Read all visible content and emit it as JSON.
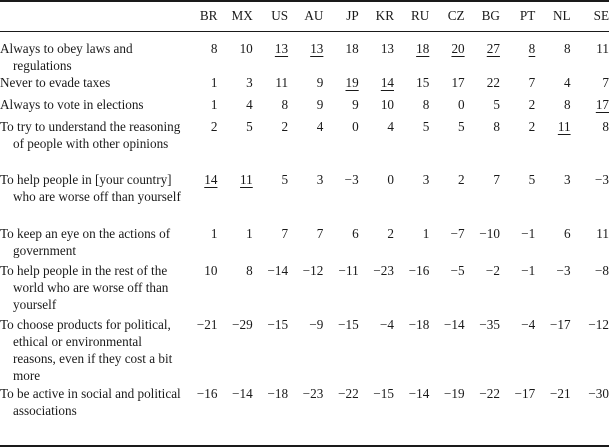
{
  "table": {
    "columns": [
      "BR",
      "MX",
      "US",
      "AU",
      "JP",
      "KR",
      "RU",
      "CZ",
      "BG",
      "PT",
      "NL",
      "SE"
    ],
    "rows": [
      {
        "label": "Always to obey laws and regulations",
        "values": [
          "8",
          "10",
          "13",
          "13",
          "18",
          "13",
          "18",
          "20",
          "27",
          "8",
          "8",
          "11"
        ],
        "underlined": [
          false,
          false,
          true,
          true,
          false,
          false,
          true,
          true,
          true,
          true,
          false,
          false
        ]
      },
      {
        "label": "Never to evade taxes",
        "values": [
          "1",
          "3",
          "11",
          "9",
          "19",
          "14",
          "15",
          "17",
          "22",
          "7",
          "4",
          "7"
        ],
        "underlined": [
          false,
          false,
          false,
          false,
          true,
          true,
          false,
          false,
          false,
          false,
          false,
          false
        ]
      },
      {
        "label": "Always to vote in elections",
        "values": [
          "1",
          "4",
          "8",
          "9",
          "9",
          "10",
          "8",
          "0",
          "5",
          "2",
          "8",
          "17"
        ],
        "underlined": [
          false,
          false,
          false,
          false,
          false,
          false,
          false,
          false,
          false,
          false,
          false,
          true
        ]
      },
      {
        "label": "To try to understand the reasoning of people with other opinions",
        "values": [
          "2",
          "5",
          "2",
          "4",
          "0",
          "4",
          "5",
          "5",
          "8",
          "2",
          "11",
          "8"
        ],
        "underlined": [
          false,
          false,
          false,
          false,
          false,
          false,
          false,
          false,
          false,
          false,
          true,
          false
        ]
      },
      {
        "label": "To help people in [your country] who are worse off than yourself",
        "values": [
          "14",
          "11",
          "5",
          "3",
          "−3",
          "0",
          "3",
          "2",
          "7",
          "5",
          "3",
          "−3"
        ],
        "underlined": [
          true,
          true,
          false,
          false,
          false,
          false,
          false,
          false,
          false,
          false,
          false,
          false
        ]
      },
      {
        "label": "To keep an eye on the actions of government",
        "values": [
          "1",
          "1",
          "7",
          "7",
          "6",
          "2",
          "1",
          "−7",
          "−10",
          "−1",
          "6",
          "11"
        ],
        "underlined": [
          false,
          false,
          false,
          false,
          false,
          false,
          false,
          false,
          false,
          false,
          false,
          false
        ]
      },
      {
        "label": "To help people in the rest of the world who are worse off than yourself",
        "values": [
          "10",
          "8",
          "−14",
          "−12",
          "−11",
          "−23",
          "−16",
          "−5",
          "−2",
          "−1",
          "−3",
          "−8"
        ],
        "underlined": [
          false,
          false,
          false,
          false,
          false,
          false,
          false,
          false,
          false,
          false,
          false,
          false
        ]
      },
      {
        "label": "To choose products for political, ethical or environmental reasons, even if they cost a bit more",
        "values": [
          "−21",
          "−29",
          "−15",
          "−9",
          "−15",
          "−4",
          "−18",
          "−14",
          "−35",
          "−4",
          "−17",
          "−12"
        ],
        "underlined": [
          false,
          false,
          false,
          false,
          false,
          false,
          false,
          false,
          false,
          false,
          false,
          false
        ]
      },
      {
        "label": "To be active in social and political associations",
        "values": [
          "−16",
          "−14",
          "−18",
          "−23",
          "−22",
          "−15",
          "−14",
          "−19",
          "−22",
          "−17",
          "−21",
          "−30"
        ],
        "underlined": [
          false,
          false,
          false,
          false,
          false,
          false,
          false,
          false,
          false,
          false,
          false,
          false
        ]
      }
    ]
  }
}
